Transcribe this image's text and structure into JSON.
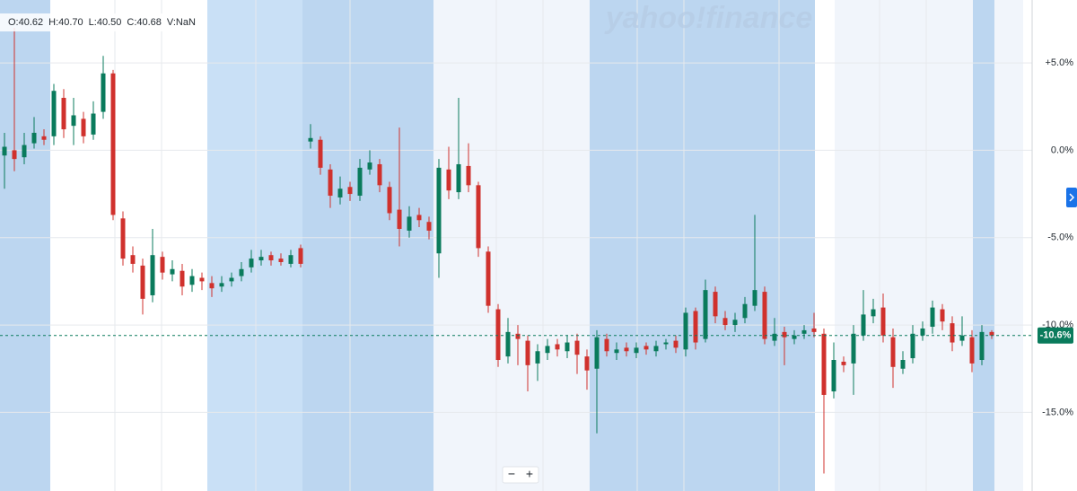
{
  "chart_data": {
    "type": "candlestick",
    "ohlc_header": [
      "O:40.62",
      "H:40.70",
      "L:40.50",
      "C:40.68",
      "V:NaN"
    ],
    "watermark": "yahoo!finance",
    "zoom_controls": [
      "−",
      "+"
    ],
    "up_color": "#0a7b5c",
    "down_color": "#d0312d",
    "ylim": [
      -19.5,
      8.6
    ],
    "yticks": [
      {
        "value": 5,
        "label": "+5.0%"
      },
      {
        "value": 0,
        "label": "0.0%"
      },
      {
        "value": -5,
        "label": "-5.0%"
      },
      {
        "value": -10,
        "label": "-10.0%"
      },
      {
        "value": -15,
        "label": "-15.0%"
      }
    ],
    "grid": true,
    "last_value": {
      "value": -10.6,
      "label": "-10.6%"
    },
    "series": [
      {
        "open": [
          -0.3,
          0.0,
          -0.4,
          0.4,
          0.8,
          0.8,
          3.0,
          1.4,
          1.8,
          0.9,
          2.2,
          4.4,
          -3.9,
          -6.0,
          -6.6,
          -8.3,
          -6.1,
          -7.1,
          -6.9,
          -7.7,
          -7.3,
          -7.6,
          -7.8,
          -7.5,
          -7.2,
          -6.7,
          -6.3,
          -6.0,
          -6.2,
          -6.5,
          -5.6,
          0.5,
          0.6,
          -1.1,
          -2.7,
          -2.1,
          -2.6,
          -1.1,
          -0.8,
          -2.1,
          -3.4,
          -4.6,
          -3.7,
          -4.1,
          -5.9,
          -1.1,
          -2.4,
          -0.9,
          -2.0,
          -5.8,
          -9.1,
          -11.8,
          -10.5,
          -10.9,
          -12.2,
          -11.6,
          -11.1,
          -11.5,
          -10.9,
          -11.8,
          -12.5,
          -10.8,
          -11.6,
          -11.3,
          -11.6,
          -11.2,
          -11.5,
          -11.1,
          -10.9,
          -11.4,
          -9.2,
          -10.8,
          -8.1,
          -9.6,
          -10.0,
          -9.6,
          -8.9,
          -8.1,
          -10.9,
          -10.4,
          -10.8,
          -10.5,
          -10.2,
          -10.5,
          -13.8,
          -12.1,
          -12.2,
          -10.6,
          -9.5,
          -9.0,
          -10.7,
          -12.5,
          -11.9,
          -10.6,
          -10.1,
          -9.1,
          -9.9,
          -10.9,
          -10.7,
          -12.0,
          -10.4
        ],
        "high": [
          1.0,
          7.0,
          1.0,
          1.9,
          1.2,
          3.8,
          3.5,
          3.0,
          2.2,
          2.8,
          5.4,
          4.6,
          -3.5,
          -5.5,
          -6.2,
          -4.5,
          -5.8,
          -6.3,
          -6.5,
          -6.8,
          -7.0,
          -7.2,
          -7.2,
          -7.0,
          -6.4,
          -5.7,
          -5.7,
          -5.8,
          -5.9,
          -5.7,
          -5.4,
          1.5,
          0.8,
          -0.8,
          -1.5,
          -1.8,
          -0.5,
          0.0,
          -0.5,
          -1.8,
          1.3,
          -3.2,
          -3.3,
          -3.8,
          -0.5,
          0.2,
          3.0,
          0.4,
          -1.8,
          -5.5,
          -8.8,
          -9.6,
          -10.0,
          -10.6,
          -11.1,
          -10.8,
          -10.8,
          -10.6,
          -10.5,
          -11.4,
          -10.3,
          -10.5,
          -11.0,
          -11.0,
          -11.0,
          -11.0,
          -10.9,
          -10.8,
          -10.6,
          -9.0,
          -9.0,
          -7.4,
          -7.8,
          -9.2,
          -9.3,
          -8.4,
          -3.7,
          -7.8,
          -9.6,
          -10.1,
          -10.3,
          -10.0,
          -9.3,
          -10.2,
          -11.0,
          -11.8,
          -10.0,
          -8.0,
          -8.5,
          -8.2,
          -10.2,
          -11.5,
          -10.0,
          -9.8,
          -8.6,
          -8.8,
          -9.5,
          -9.5,
          -10.3,
          -10.0,
          -10.3
        ],
        "low": [
          -2.2,
          -1.2,
          -0.8,
          0.1,
          0.3,
          0.3,
          0.7,
          0.3,
          0.4,
          0.6,
          1.8,
          -4.0,
          -6.6,
          -7.0,
          -9.4,
          -8.7,
          -7.4,
          -7.5,
          -8.3,
          -8.1,
          -8.0,
          -8.4,
          -8.1,
          -7.8,
          -7.5,
          -7.0,
          -6.6,
          -6.6,
          -6.6,
          -6.7,
          -6.7,
          0.1,
          -1.4,
          -3.3,
          -3.1,
          -2.9,
          -2.9,
          -1.4,
          -2.4,
          -4.0,
          -5.5,
          -5.0,
          -4.4,
          -5.1,
          -7.3,
          -2.8,
          -2.8,
          -2.4,
          -6.1,
          -9.3,
          -12.4,
          -12.2,
          -12.3,
          -13.8,
          -13.2,
          -12.0,
          -11.8,
          -11.9,
          -12.8,
          -13.7,
          -16.2,
          -11.8,
          -12.0,
          -11.8,
          -11.9,
          -11.7,
          -11.8,
          -11.4,
          -11.6,
          -11.8,
          -11.4,
          -11.0,
          -9.9,
          -10.3,
          -10.4,
          -9.9,
          -9.2,
          -11.1,
          -11.2,
          -12.3,
          -11.1,
          -10.8,
          -10.7,
          -18.5,
          -14.2,
          -12.7,
          -14.0,
          -10.9,
          -9.9,
          -11.0,
          -13.6,
          -12.8,
          -12.2,
          -10.9,
          -10.5,
          -10.3,
          -11.5,
          -11.2,
          -12.7,
          -12.3,
          -10.8
        ],
        "close": [
          0.2,
          -0.5,
          0.3,
          1.0,
          0.6,
          3.4,
          1.2,
          2.0,
          0.8,
          2.1,
          4.4,
          -3.7,
          -6.2,
          -6.5,
          -8.5,
          -6.0,
          -7.0,
          -6.8,
          -7.8,
          -7.2,
          -7.5,
          -7.9,
          -7.6,
          -7.3,
          -6.8,
          -6.2,
          -6.1,
          -6.3,
          -6.4,
          -6.0,
          -6.5,
          0.7,
          -1.0,
          -2.6,
          -2.2,
          -2.5,
          -1.0,
          -0.7,
          -2.0,
          -3.6,
          -4.5,
          -3.8,
          -4.0,
          -4.6,
          -1.0,
          -2.3,
          -0.8,
          -2.0,
          -5.6,
          -8.9,
          -12.0,
          -10.4,
          -10.8,
          -12.3,
          -11.5,
          -11.2,
          -11.4,
          -11.0,
          -11.7,
          -12.6,
          -10.7,
          -11.5,
          -11.4,
          -11.5,
          -11.3,
          -11.4,
          -11.2,
          -11.0,
          -11.3,
          -9.3,
          -11.0,
          -8.0,
          -9.5,
          -10.0,
          -9.7,
          -8.8,
          -8.0,
          -10.8,
          -10.5,
          -10.7,
          -10.6,
          -10.3,
          -10.4,
          -14.0,
          -12.0,
          -12.3,
          -10.5,
          -9.4,
          -9.1,
          -10.6,
          -12.4,
          -12.0,
          -10.5,
          -10.2,
          -9.0,
          -9.8,
          -11.0,
          -10.6,
          -12.2,
          -10.4,
          -10.6
        ]
      }
    ]
  }
}
